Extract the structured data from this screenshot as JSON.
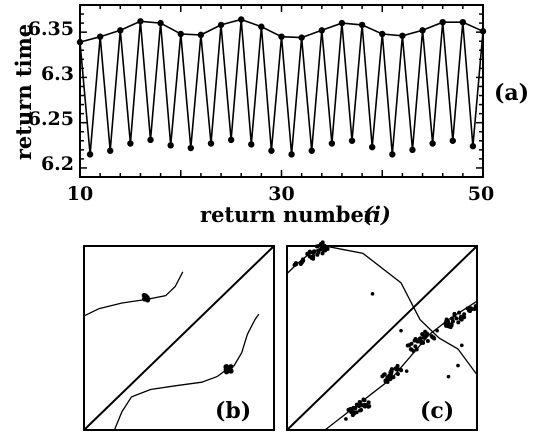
{
  "chart_data": [
    {
      "panel": "(a)",
      "type": "line",
      "xlabel": "return number",
      "xlabel_symbol": "(i)",
      "ylabel": "return time",
      "xlim": [
        10,
        50
      ],
      "ylim": [
        6.19,
        6.38
      ],
      "xticks": [
        "10",
        "30",
        "50"
      ],
      "yticks": [
        "6.2",
        "6.25",
        "6.3",
        "6.35"
      ],
      "grid": false,
      "series": [
        {
          "x": [
            10,
            11,
            12,
            13,
            14,
            15,
            16,
            17,
            18,
            19,
            20,
            21,
            22,
            23,
            24,
            25,
            26,
            27,
            28,
            29,
            30,
            31,
            32,
            33,
            34,
            35,
            36,
            37,
            38,
            39,
            40,
            41,
            42,
            43,
            44,
            45,
            46,
            47,
            48,
            49,
            50
          ],
          "y": [
            6.339,
            6.215,
            6.345,
            6.219,
            6.352,
            6.227,
            6.362,
            6.231,
            6.36,
            6.225,
            6.348,
            6.222,
            6.347,
            6.227,
            6.358,
            6.231,
            6.364,
            6.226,
            6.356,
            6.219,
            6.345,
            6.215,
            6.344,
            6.219,
            6.352,
            6.227,
            6.36,
            6.23,
            6.358,
            6.223,
            6.348,
            6.215,
            6.346,
            6.22,
            6.352,
            6.227,
            6.361,
            6.23,
            6.361,
            6.224,
            6.351
          ]
        }
      ]
    },
    {
      "panel": "(b)",
      "type": "line",
      "xticks": [],
      "yticks": [],
      "diagonal": true,
      "series": [
        {
          "x": [
            0.0,
            0.08,
            0.2,
            0.33,
            0.43,
            0.48,
            0.52
          ],
          "y": [
            0.62,
            0.66,
            0.69,
            0.71,
            0.73,
            0.78,
            0.86
          ]
        },
        {
          "x": [
            0.16,
            0.2,
            0.25,
            0.35,
            0.48,
            0.62,
            0.7,
            0.74,
            0.79,
            0.83,
            0.86,
            0.9,
            0.92
          ],
          "y": [
            0.0,
            0.1,
            0.18,
            0.22,
            0.24,
            0.26,
            0.29,
            0.32,
            0.35,
            0.42,
            0.52,
            0.6,
            0.63
          ]
        }
      ],
      "clusters": [
        {
          "x": 0.33,
          "y": 0.72,
          "n": 10,
          "spread": 0.015
        },
        {
          "x": 0.76,
          "y": 0.33,
          "n": 12,
          "spread": 0.015
        }
      ]
    },
    {
      "panel": "(c)",
      "type": "scatter",
      "xticks": [],
      "yticks": [],
      "diagonal": true,
      "curve": {
        "x": [
          0.0,
          0.05,
          0.12,
          0.2,
          0.3,
          0.4,
          0.5,
          0.6,
          0.7,
          0.8,
          0.9,
          1.0
        ],
        "y": [
          0.85,
          0.9,
          0.96,
          1.0,
          0.98,
          0.96,
          0.88,
          0.8,
          0.6,
          0.5,
          0.44,
          0.3
        ]
      },
      "line": {
        "x": [
          0.2,
          0.35,
          0.45,
          0.55,
          0.65,
          0.75,
          0.85,
          1.0
        ],
        "y": [
          0.0,
          0.12,
          0.2,
          0.28,
          0.4,
          0.52,
          0.6,
          0.7
        ]
      },
      "clusters": [
        {
          "x": 0.16,
          "y": 0.97,
          "n": 30,
          "spread": 0.03
        },
        {
          "x": 0.06,
          "y": 0.91,
          "n": 8,
          "spread": 0.02
        },
        {
          "x": 0.38,
          "y": 0.12,
          "n": 28,
          "spread": 0.03
        },
        {
          "x": 0.55,
          "y": 0.3,
          "n": 26,
          "spread": 0.03
        },
        {
          "x": 0.7,
          "y": 0.48,
          "n": 30,
          "spread": 0.035
        },
        {
          "x": 0.88,
          "y": 0.6,
          "n": 26,
          "spread": 0.03
        },
        {
          "x": 0.97,
          "y": 0.66,
          "n": 8,
          "spread": 0.015
        }
      ],
      "outliers": {
        "x": [
          0.45,
          0.6,
          0.63,
          0.79,
          0.92,
          0.85,
          0.9,
          0.31
        ],
        "y": [
          0.74,
          0.54,
          0.32,
          0.54,
          0.46,
          0.29,
          0.35,
          0.06
        ]
      }
    }
  ]
}
